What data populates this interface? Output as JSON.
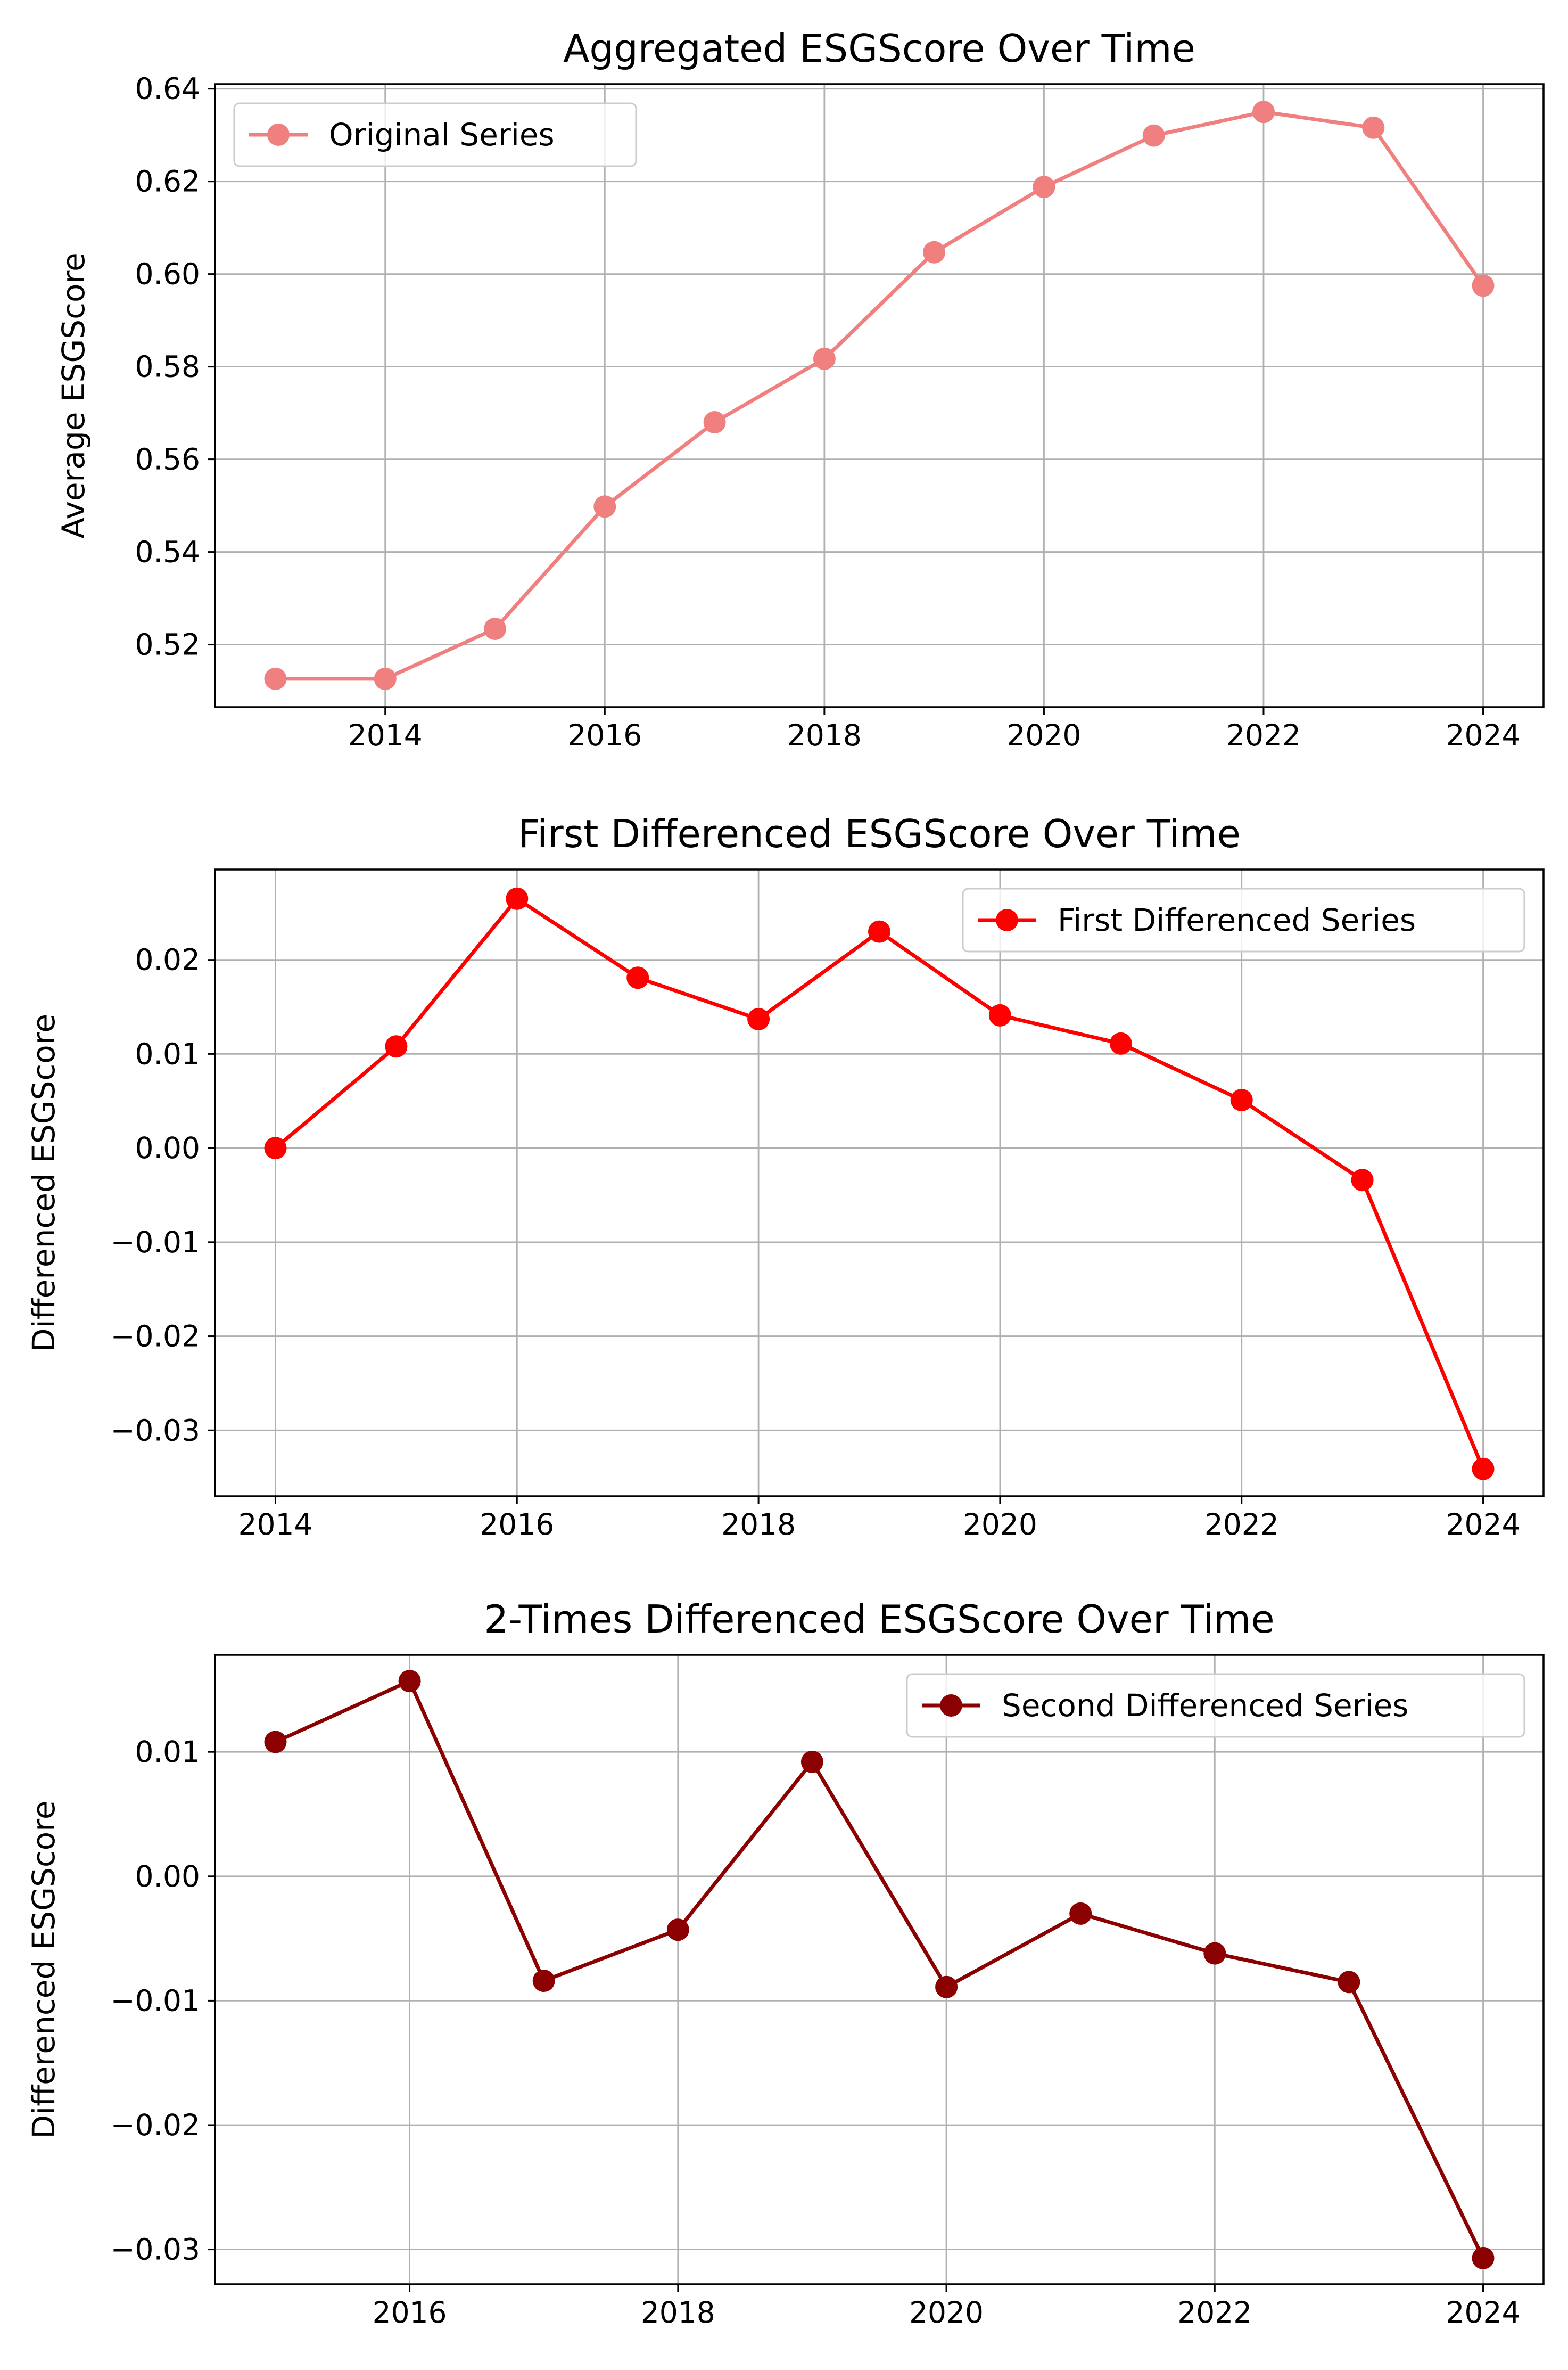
{
  "chart_data": [
    {
      "type": "line",
      "title": "Aggregated ESGScore Over Time",
      "xlabel": "",
      "ylabel": "Average ESGScore",
      "xlim": [
        2012.45,
        2024.55
      ],
      "ylim": [
        0.5065,
        0.641
      ],
      "xticks": [
        2014,
        2016,
        2018,
        2020,
        2022,
        2024
      ],
      "yticks": [
        0.52,
        0.54,
        0.56,
        0.58,
        0.6,
        0.62,
        0.64
      ],
      "ytick_labels": [
        "0.52",
        "0.54",
        "0.56",
        "0.58",
        "0.60",
        "0.62",
        "0.64"
      ],
      "grid": true,
      "legend_position": "upper-left",
      "series": [
        {
          "name": "Original Series",
          "color": "#f08080",
          "x": [
            2013,
            2014,
            2015,
            2016,
            2017,
            2018,
            2019,
            2020,
            2021,
            2022,
            2023,
            2024
          ],
          "values": [
            0.5126,
            0.5126,
            0.5234,
            0.5498,
            0.568,
            0.5817,
            0.6047,
            0.6188,
            0.6299,
            0.635,
            0.6316,
            0.5975
          ]
        }
      ]
    },
    {
      "type": "line",
      "title": "First Differenced ESGScore Over Time",
      "xlabel": "",
      "ylabel": "Differenced ESGScore",
      "xlim": [
        2013.5,
        2024.5
      ],
      "ylim": [
        -0.037,
        0.0296
      ],
      "xticks": [
        2014,
        2016,
        2018,
        2020,
        2022,
        2024
      ],
      "yticks": [
        -0.03,
        -0.02,
        -0.01,
        0.0,
        0.01,
        0.02
      ],
      "ytick_labels": [
        "−0.03",
        "−0.02",
        "−0.01",
        "0.00",
        "0.01",
        "0.02"
      ],
      "grid": true,
      "legend_position": "upper-right",
      "series": [
        {
          "name": "First Differenced Series",
          "color": "#ff0000",
          "x": [
            2014,
            2015,
            2016,
            2017,
            2018,
            2019,
            2020,
            2021,
            2022,
            2023,
            2024
          ],
          "values": [
            0.0,
            0.0108,
            0.0265,
            0.0181,
            0.0137,
            0.023,
            0.0141,
            0.0111,
            0.0051,
            -0.0034,
            -0.0341
          ]
        }
      ]
    },
    {
      "type": "line",
      "title": "2-Times Differenced ESGScore Over Time",
      "xlabel": "",
      "ylabel": "Differenced ESGScore",
      "xlim": [
        2014.55,
        2024.45
      ],
      "ylim": [
        -0.0328,
        0.0178
      ],
      "xticks": [
        2016,
        2018,
        2020,
        2022,
        2024
      ],
      "yticks": [
        -0.03,
        -0.02,
        -0.01,
        0.0,
        0.01
      ],
      "ytick_labels": [
        "−0.03",
        "−0.02",
        "−0.01",
        "0.00",
        "0.01"
      ],
      "grid": true,
      "legend_position": "upper-right",
      "series": [
        {
          "name": "Second Differenced Series",
          "color": "#8b0000",
          "x": [
            2015,
            2016,
            2017,
            2018,
            2019,
            2020,
            2021,
            2022,
            2023,
            2024
          ],
          "values": [
            0.0108,
            0.0157,
            -0.0084,
            -0.0043,
            0.0092,
            -0.0089,
            -0.003,
            -0.0062,
            -0.0085,
            -0.0307
          ]
        }
      ]
    }
  ]
}
